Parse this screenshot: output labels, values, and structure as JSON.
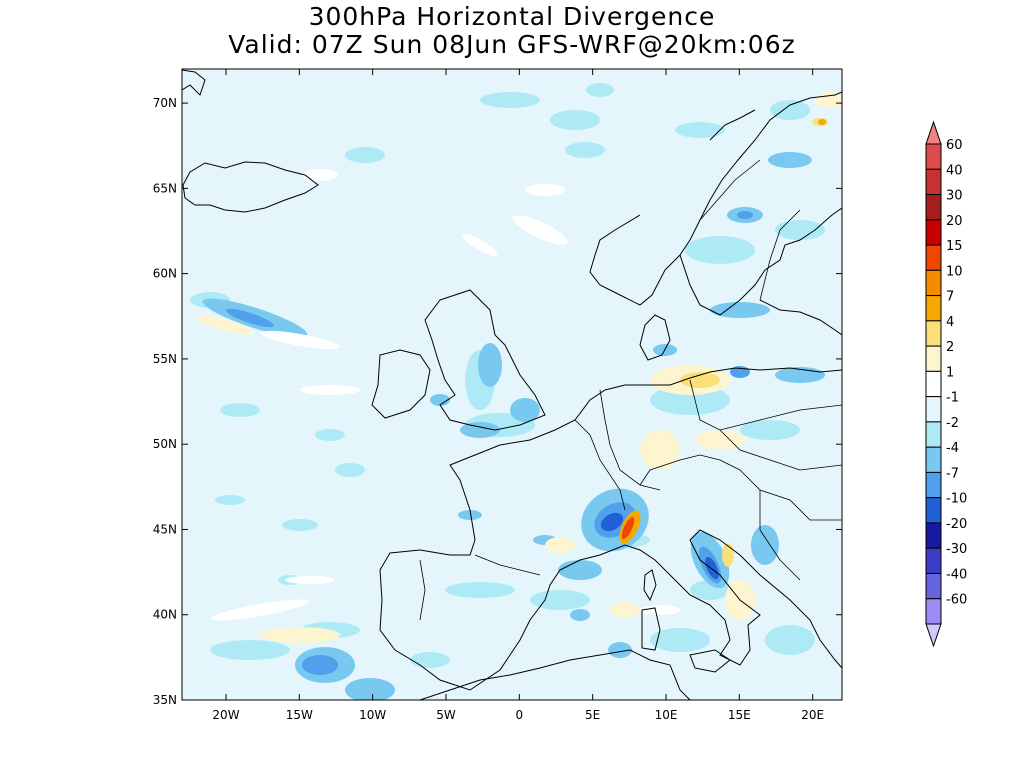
{
  "title": {
    "line1": "300hPa Horizontal Divergence",
    "line2": "Valid: 07Z Sun 08Jun GFS-WRF@20km:06z"
  },
  "map": {
    "lon_range": [
      -23,
      22
    ],
    "lat_range": [
      35,
      72
    ],
    "x_ticks": [
      "20W",
      "15W",
      "10W",
      "5W",
      "0",
      "5E",
      "10E",
      "15E",
      "20E"
    ],
    "y_ticks": [
      "35N",
      "40N",
      "45N",
      "50N",
      "55N",
      "60N",
      "65N",
      "70N"
    ],
    "background_field_color": "#e4f6fc"
  },
  "colorbar": {
    "labels": [
      "60",
      "40",
      "30",
      "20",
      "15",
      "10",
      "7",
      "4",
      "2",
      "1",
      "-1",
      "-2",
      "-4",
      "-7",
      "-10",
      "-20",
      "-30",
      "-40",
      "-60"
    ],
    "colors": [
      "#f08282",
      "#dc4b4b",
      "#c83232",
      "#a51e1e",
      "#c80000",
      "#f04600",
      "#f58c00",
      "#f5a800",
      "#fbe07a",
      "#fdf5d0",
      "#ffffff",
      "#e4f6fc",
      "#aeeaf5",
      "#78c8f0",
      "#50a0ec",
      "#2260d6",
      "#1a1aa0",
      "#3c3cc8",
      "#6464dc",
      "#9a8cf0",
      "#d2c8fa"
    ]
  }
}
